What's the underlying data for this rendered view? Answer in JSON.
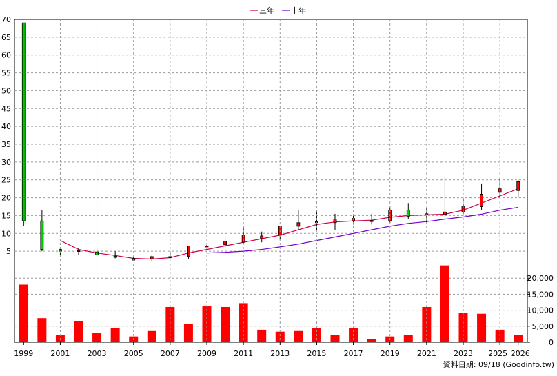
{
  "legend": {
    "ma3_label": "三年",
    "ma10_label": "十年"
  },
  "source_note": "資料日期: 09/18 (Goodinfo.tw)",
  "colors": {
    "up": "#ff0000",
    "down": "#00cc00",
    "ma3": "#cc0044",
    "ma10": "#7700cc",
    "volume": "#ff0000",
    "grid": "#999999"
  },
  "chart_data": [
    {
      "type": "candlestick",
      "y_ticks": [
        5,
        10,
        15,
        20,
        25,
        30,
        35,
        40,
        45,
        50,
        55,
        60,
        65,
        70
      ],
      "ylim": [
        0,
        70
      ],
      "grid": true,
      "legend_position": "top-center",
      "candles": [
        {
          "year": 1999,
          "open": 69,
          "close": 13.5,
          "high": 69,
          "low": 12
        },
        {
          "year": 2000,
          "open": 13.5,
          "close": 5.5,
          "high": 16.5,
          "low": 5
        },
        {
          "year": 2001,
          "open": 5.5,
          "close": 5,
          "high": 6,
          "low": 4
        },
        {
          "year": 2002,
          "open": 5,
          "close": 5.2,
          "high": 6,
          "low": 4
        },
        {
          "year": 2003,
          "open": 4.8,
          "close": 4,
          "high": 6,
          "low": 3.8
        },
        {
          "year": 2004,
          "open": 3.6,
          "close": 3.3,
          "high": 5,
          "low": 3
        },
        {
          "year": 2005,
          "open": 3,
          "close": 2.5,
          "high": 3.5,
          "low": 2.2
        },
        {
          "year": 2006,
          "open": 2.8,
          "close": 3.5,
          "high": 3.8,
          "low": 2.3
        },
        {
          "year": 2007,
          "open": 3.2,
          "close": 3.5,
          "high": 5,
          "low": 3
        },
        {
          "year": 2008,
          "open": 3.5,
          "close": 6.5,
          "high": 6.5,
          "low": 2.8
        },
        {
          "year": 2009,
          "open": 6.2,
          "close": 6.5,
          "high": 7,
          "low": 5.5
        },
        {
          "year": 2010,
          "open": 6.8,
          "close": 7.8,
          "high": 8.8,
          "low": 6
        },
        {
          "year": 2011,
          "open": 7.5,
          "close": 9.5,
          "high": 12,
          "low": 7
        },
        {
          "year": 2012,
          "open": 8.5,
          "close": 9.3,
          "high": 10.5,
          "low": 7.5
        },
        {
          "year": 2013,
          "open": 9.5,
          "close": 12,
          "high": 12,
          "low": 8.2
        },
        {
          "year": 2014,
          "open": 12,
          "close": 13,
          "high": 16.5,
          "low": 11
        },
        {
          "year": 2015,
          "open": 13,
          "close": 13.3,
          "high": 16.5,
          "low": 11
        },
        {
          "year": 2016,
          "open": 13,
          "close": 14,
          "high": 15.5,
          "low": 11
        },
        {
          "year": 2017,
          "open": 13.5,
          "close": 14.2,
          "high": 15,
          "low": 12.5
        },
        {
          "year": 2018,
          "open": 13.5,
          "close": 13.6,
          "high": 15.5,
          "low": 12.5
        },
        {
          "year": 2019,
          "open": 13.5,
          "close": 16.5,
          "high": 17.5,
          "low": 13
        },
        {
          "year": 2020,
          "open": 16.5,
          "close": 14.8,
          "high": 18.5,
          "low": 14
        },
        {
          "year": 2021,
          "open": 15.2,
          "close": 15.5,
          "high": 17,
          "low": 12.8
        },
        {
          "year": 2022,
          "open": 15.3,
          "close": 16,
          "high": 26,
          "low": 14
        },
        {
          "year": 2023,
          "open": 16,
          "close": 17.5,
          "high": 20,
          "low": 15.5
        },
        {
          "year": 2024,
          "open": 17.5,
          "close": 21,
          "high": 24,
          "low": 16.5
        },
        {
          "year": 2025,
          "open": 21.5,
          "close": 22.5,
          "high": 25.5,
          "low": 20
        },
        {
          "year": 2026,
          "open": 22,
          "close": 24.5,
          "high": 25,
          "low": 20
        }
      ],
      "series": [
        {
          "name": "三年",
          "x": [
            2001,
            2002,
            2003,
            2004,
            2005,
            2006,
            2007,
            2008,
            2009,
            2010,
            2011,
            2012,
            2013,
            2014,
            2015,
            2016,
            2017,
            2018,
            2019,
            2020,
            2021,
            2022,
            2023,
            2024,
            2025,
            2026
          ],
          "values": [
            8,
            5.5,
            4.5,
            3.8,
            3,
            2.8,
            3.2,
            4.5,
            5.5,
            6.5,
            7.5,
            8.5,
            9.5,
            11,
            12.5,
            13.2,
            13.5,
            13.7,
            14.5,
            15,
            15.2,
            15.4,
            16.5,
            18.5,
            20.5,
            22.5
          ]
        },
        {
          "name": "十年",
          "x": [
            2009,
            2010,
            2011,
            2012,
            2013,
            2014,
            2015,
            2016,
            2017,
            2018,
            2019,
            2020,
            2021,
            2022,
            2023,
            2024,
            2025,
            2026
          ],
          "values": [
            4.5,
            4.7,
            5,
            5.5,
            6.2,
            7,
            8,
            9,
            10,
            11,
            12,
            12.8,
            13.3,
            14,
            14.6,
            15.4,
            16.5,
            17.3
          ]
        }
      ]
    },
    {
      "type": "bar",
      "title": "",
      "y_ticks": [
        0,
        5000,
        10000,
        15000,
        20000
      ],
      "y_tick_labels": [
        "0",
        "5,000",
        "10,000",
        "15,000",
        "20,000"
      ],
      "ylim": [
        0,
        25000
      ],
      "x_tick_labels": [
        "1999",
        "2001",
        "2003",
        "2005",
        "2007",
        "2009",
        "2011",
        "2013",
        "2015",
        "2017",
        "2019",
        "2021",
        "2023",
        "2025",
        "2026"
      ],
      "categories": [
        1999,
        2000,
        2001,
        2002,
        2003,
        2004,
        2005,
        2006,
        2007,
        2008,
        2009,
        2010,
        2011,
        2012,
        2013,
        2014,
        2015,
        2016,
        2017,
        2018,
        2019,
        2020,
        2021,
        2022,
        2023,
        2024,
        2025,
        2026
      ],
      "values": [
        18000,
        7500,
        2200,
        6500,
        2800,
        4500,
        1800,
        3500,
        11000,
        5700,
        11300,
        11000,
        12200,
        3900,
        3300,
        3500,
        4500,
        2200,
        4500,
        1000,
        1800,
        2200,
        11000,
        24000,
        9100,
        8900,
        3900,
        2200
      ]
    }
  ]
}
